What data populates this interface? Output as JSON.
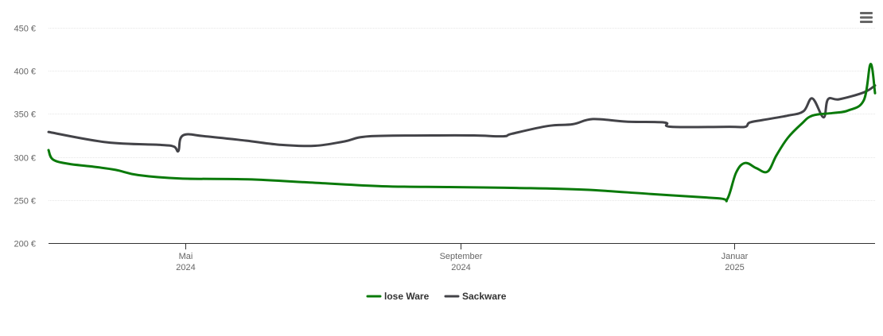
{
  "chart_data": {
    "type": "line",
    "title": "",
    "xlabel": "",
    "ylabel": "",
    "x_range": [
      "2024-03-01",
      "2025-03-05"
    ],
    "ylim": [
      200,
      450
    ],
    "y_ticks": [
      200,
      250,
      300,
      350,
      400,
      450
    ],
    "y_tick_labels": [
      "200 €",
      "250 €",
      "300 €",
      "350 €",
      "400 €",
      "450 €"
    ],
    "x_ticks": [
      {
        "date": "2024-05-01",
        "label": "Mai",
        "sublabel": "2024"
      },
      {
        "date": "2024-09-01",
        "label": "September",
        "sublabel": "2024"
      },
      {
        "date": "2025-01-01",
        "label": "Januar",
        "sublabel": "2025"
      }
    ],
    "grid": "horizontal",
    "legend_position": "bottom-center",
    "series": [
      {
        "name": "lose Ware",
        "color": "#0a7a0a",
        "points": [
          [
            "2024-03-01",
            308
          ],
          [
            "2024-03-03",
            297
          ],
          [
            "2024-03-10",
            292
          ],
          [
            "2024-03-20",
            289
          ],
          [
            "2024-03-31",
            285
          ],
          [
            "2024-04-10",
            279
          ],
          [
            "2024-04-29",
            275
          ],
          [
            "2024-05-29",
            274
          ],
          [
            "2024-06-28",
            270
          ],
          [
            "2024-07-28",
            266
          ],
          [
            "2024-08-27",
            265
          ],
          [
            "2024-09-26",
            264
          ],
          [
            "2024-10-26",
            262
          ],
          [
            "2024-11-25",
            257
          ],
          [
            "2024-12-25",
            252
          ],
          [
            "2024-12-29",
            251
          ],
          [
            "2025-01-02",
            282
          ],
          [
            "2025-01-06",
            293
          ],
          [
            "2025-01-11",
            287
          ],
          [
            "2025-01-16",
            283
          ],
          [
            "2025-01-20",
            302
          ],
          [
            "2025-01-25",
            322
          ],
          [
            "2025-01-31",
            338
          ],
          [
            "2025-02-05",
            348
          ],
          [
            "2025-02-14",
            351
          ],
          [
            "2025-02-21",
            354
          ],
          [
            "2025-02-28",
            366
          ],
          [
            "2025-03-03",
            408
          ],
          [
            "2025-03-05",
            374
          ]
        ]
      },
      {
        "name": "Sackware",
        "color": "#434348",
        "points": [
          [
            "2024-03-01",
            329
          ],
          [
            "2024-03-27",
            317
          ],
          [
            "2024-04-20",
            314
          ],
          [
            "2024-04-26",
            312
          ],
          [
            "2024-04-28",
            307
          ],
          [
            "2024-04-30",
            325
          ],
          [
            "2024-05-10",
            324
          ],
          [
            "2024-05-28",
            319
          ],
          [
            "2024-06-13",
            314
          ],
          [
            "2024-06-28",
            313
          ],
          [
            "2024-07-11",
            318
          ],
          [
            "2024-07-22",
            324
          ],
          [
            "2024-08-19",
            325
          ],
          [
            "2024-09-07",
            325
          ],
          [
            "2024-09-20",
            324
          ],
          [
            "2024-09-24",
            327
          ],
          [
            "2024-10-10",
            336
          ],
          [
            "2024-10-21",
            338
          ],
          [
            "2024-10-30",
            344
          ],
          [
            "2024-11-14",
            341
          ],
          [
            "2024-12-01",
            340
          ],
          [
            "2024-12-04",
            335
          ],
          [
            "2024-12-30",
            335
          ],
          [
            "2025-01-06",
            335
          ],
          [
            "2025-01-08",
            340
          ],
          [
            "2025-01-14",
            343
          ],
          [
            "2025-01-25",
            348
          ],
          [
            "2025-02-01",
            353
          ],
          [
            "2025-02-05",
            368
          ],
          [
            "2025-02-10",
            346
          ],
          [
            "2025-02-12",
            367
          ],
          [
            "2025-02-17",
            367
          ],
          [
            "2025-02-28",
            375
          ],
          [
            "2025-03-05",
            383
          ]
        ]
      }
    ]
  }
}
